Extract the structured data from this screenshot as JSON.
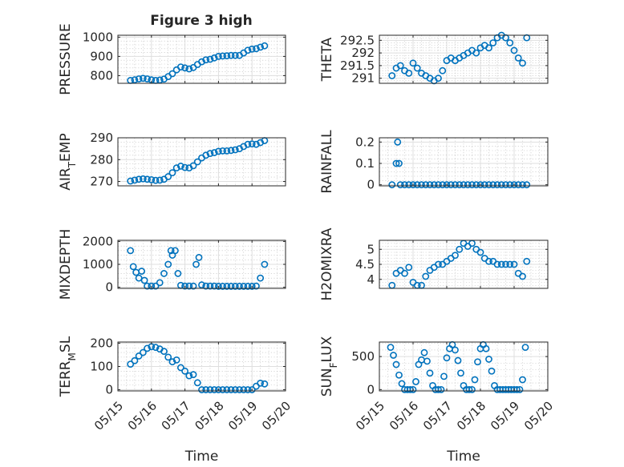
{
  "figure": {
    "title": "Figure 3 high"
  },
  "colors": {
    "marker": "#0072bd",
    "axes": "#262626",
    "grid": "#dfdfdf"
  },
  "chart_data": [
    {
      "type": "scatter",
      "id": "pressure",
      "title": "Figure 3 high",
      "xlabel": "",
      "ylabel": "PRESSURE",
      "xlim": [
        "05/15",
        "05/20"
      ],
      "ylim": [
        760,
        1010
      ],
      "yticks": [
        800,
        900,
        1000
      ],
      "yticklabels": [
        "800",
        "900",
        "1000"
      ],
      "grid": true,
      "x": [
        "05/15 09:00",
        "05/15 12:00",
        "05/15 15:00",
        "05/15 18:00",
        "05/15 21:00",
        "05/16 00:00",
        "05/16 03:00",
        "05/16 06:00",
        "05/16 09:00",
        "05/16 12:00",
        "05/16 15:00",
        "05/16 18:00",
        "05/16 21:00",
        "05/17 00:00",
        "05/17 03:00",
        "05/17 06:00",
        "05/17 09:00",
        "05/17 12:00",
        "05/17 15:00",
        "05/17 18:00",
        "05/17 21:00",
        "05/18 00:00",
        "05/18 03:00",
        "05/18 06:00",
        "05/18 09:00",
        "05/18 12:00",
        "05/18 15:00",
        "05/18 18:00",
        "05/18 21:00",
        "05/19 00:00",
        "05/19 03:00",
        "05/19 06:00",
        "05/19 09:00"
      ],
      "y": [
        775,
        778,
        783,
        786,
        783,
        778,
        775,
        777,
        782,
        795,
        810,
        830,
        845,
        840,
        835,
        842,
        858,
        872,
        882,
        885,
        892,
        900,
        902,
        903,
        905,
        905,
        905,
        918,
        932,
        938,
        940,
        948,
        955
      ]
    },
    {
      "type": "scatter",
      "id": "theta",
      "xlabel": "",
      "ylabel": "THETA",
      "xlim": [
        "05/15",
        "05/20"
      ],
      "ylim": [
        290.8,
        292.7
      ],
      "yticks": [
        291,
        291.5,
        292,
        292.5
      ],
      "yticklabels": [
        "291",
        "291.5",
        "292",
        "292.5"
      ],
      "grid": true,
      "x": [
        "05/15 09:00",
        "05/15 12:00",
        "05/15 15:00",
        "05/15 18:00",
        "05/15 21:00",
        "05/16 00:00",
        "05/16 03:00",
        "05/16 06:00",
        "05/16 09:00",
        "05/16 12:00",
        "05/16 15:00",
        "05/16 18:00",
        "05/16 21:00",
        "05/17 00:00",
        "05/17 03:00",
        "05/17 06:00",
        "05/17 09:00",
        "05/17 12:00",
        "05/17 15:00",
        "05/17 18:00",
        "05/17 21:00",
        "05/18 00:00",
        "05/18 03:00",
        "05/18 06:00",
        "05/18 09:00",
        "05/18 12:00",
        "05/18 15:00",
        "05/18 18:00",
        "05/18 21:00",
        "05/19 00:00",
        "05/19 03:00",
        "05/19 06:00",
        "05/19 09:00"
      ],
      "y": [
        291.1,
        291.4,
        291.5,
        291.3,
        291.2,
        291.6,
        291.4,
        291.2,
        291.1,
        291.0,
        290.9,
        291.0,
        291.3,
        291.7,
        291.8,
        291.7,
        291.8,
        291.9,
        292.0,
        292.1,
        292.0,
        292.2,
        292.3,
        292.2,
        292.4,
        292.6,
        292.7,
        292.6,
        292.4,
        292.1,
        291.8,
        291.6,
        292.6
      ]
    },
    {
      "type": "scatter",
      "id": "air-temp",
      "xlabel": "",
      "ylabel": "AIR_TEMP",
      "xlim": [
        "05/15",
        "05/20"
      ],
      "ylim": [
        268,
        290
      ],
      "yticks": [
        270,
        280,
        290
      ],
      "yticklabels": [
        "270",
        "280",
        "290"
      ],
      "grid": true,
      "x": [
        "05/15 09:00",
        "05/15 12:00",
        "05/15 15:00",
        "05/15 18:00",
        "05/15 21:00",
        "05/16 00:00",
        "05/16 03:00",
        "05/16 06:00",
        "05/16 09:00",
        "05/16 12:00",
        "05/16 15:00",
        "05/16 18:00",
        "05/16 21:00",
        "05/17 00:00",
        "05/17 03:00",
        "05/17 06:00",
        "05/17 09:00",
        "05/17 12:00",
        "05/17 15:00",
        "05/17 18:00",
        "05/17 21:00",
        "05/18 00:00",
        "05/18 03:00",
        "05/18 06:00",
        "05/18 09:00",
        "05/18 12:00",
        "05/18 15:00",
        "05/18 18:00",
        "05/18 21:00",
        "05/19 00:00",
        "05/19 03:00",
        "05/19 06:00",
        "05/19 09:00"
      ],
      "y": [
        270.2,
        270.6,
        271.0,
        271.2,
        271.0,
        270.8,
        270.5,
        270.6,
        271.0,
        272.2,
        274.0,
        276.2,
        277.0,
        276.4,
        276.2,
        277.2,
        279.0,
        280.8,
        282.0,
        282.8,
        283.2,
        283.8,
        284.0,
        284.0,
        284.2,
        284.5,
        285.0,
        286.0,
        287.0,
        287.2,
        287.0,
        287.8,
        288.7
      ]
    },
    {
      "type": "scatter",
      "id": "rainfall",
      "xlabel": "",
      "ylabel": "RAINFALL",
      "xlim": [
        "05/15",
        "05/20"
      ],
      "ylim": [
        -0.005,
        0.22
      ],
      "yticks": [
        0,
        0.1,
        0.2
      ],
      "yticklabels": [
        "0",
        "0.1",
        "0.2"
      ],
      "grid": true,
      "x": [
        "05/15 09:00",
        "05/15 12:00",
        "05/15 13:00",
        "05/15 14:00",
        "05/15 15:00",
        "05/15 18:00",
        "05/15 21:00",
        "05/16 00:00",
        "05/16 03:00",
        "05/16 06:00",
        "05/16 09:00",
        "05/16 12:00",
        "05/16 15:00",
        "05/16 18:00",
        "05/16 21:00",
        "05/17 00:00",
        "05/17 03:00",
        "05/17 06:00",
        "05/17 09:00",
        "05/17 12:00",
        "05/17 15:00",
        "05/17 18:00",
        "05/17 21:00",
        "05/18 00:00",
        "05/18 03:00",
        "05/18 06:00",
        "05/18 09:00",
        "05/18 12:00",
        "05/18 15:00",
        "05/18 18:00",
        "05/18 21:00",
        "05/19 00:00",
        "05/19 03:00",
        "05/19 06:00",
        "05/19 09:00"
      ],
      "y": [
        0,
        0.1,
        0.2,
        0.1,
        0,
        0,
        0,
        0,
        0,
        0,
        0,
        0,
        0,
        0,
        0,
        0,
        0,
        0,
        0,
        0,
        0,
        0,
        0,
        0,
        0,
        0,
        0,
        0,
        0,
        0,
        0,
        0,
        0,
        0,
        0
      ]
    },
    {
      "type": "scatter",
      "id": "mixdepth",
      "xlabel": "",
      "ylabel": "MIXDEPTH",
      "xlim": [
        "05/15",
        "05/20"
      ],
      "ylim": [
        -50,
        2050
      ],
      "yticks": [
        0,
        1000,
        2000
      ],
      "yticklabels": [
        "0",
        "1000",
        "2000"
      ],
      "grid": true,
      "x": [
        "05/15 09:00",
        "05/15 11:00",
        "05/15 13:00",
        "05/15 15:00",
        "05/15 17:00",
        "05/15 19:00",
        "05/15 21:00",
        "05/16 00:00",
        "05/16 03:00",
        "05/16 06:00",
        "05/16 09:00",
        "05/16 12:00",
        "05/16 14:00",
        "05/16 15:00",
        "05/16 17:00",
        "05/16 19:00",
        "05/16 21:00",
        "05/17 00:00",
        "05/17 03:00",
        "05/17 06:00",
        "05/17 08:00",
        "05/17 10:00",
        "05/17 12:00",
        "05/17 15:00",
        "05/17 18:00",
        "05/17 21:00",
        "05/18 00:00",
        "05/18 03:00",
        "05/18 06:00",
        "05/18 09:00",
        "05/18 12:00",
        "05/18 15:00",
        "05/18 18:00",
        "05/18 21:00",
        "05/19 00:00",
        "05/19 03:00",
        "05/19 06:00",
        "05/19 09:00"
      ],
      "y": [
        1600,
        900,
        650,
        400,
        700,
        300,
        50,
        50,
        50,
        200,
        600,
        1000,
        1600,
        1400,
        1600,
        600,
        80,
        50,
        50,
        50,
        1000,
        1300,
        100,
        50,
        50,
        50,
        40,
        40,
        40,
        40,
        40,
        40,
        40,
        40,
        40,
        50,
        400,
        1000
      ]
    },
    {
      "type": "scatter",
      "id": "h2omixra",
      "xlabel": "",
      "ylabel": "H2OMIXRA",
      "xlim": [
        "05/15",
        "05/20"
      ],
      "ylim": [
        3.7,
        5.3
      ],
      "yticks": [
        4,
        4.5,
        5
      ],
      "yticklabels": [
        "4",
        "4.5",
        "5"
      ],
      "grid": true,
      "x": [
        "05/15 09:00",
        "05/15 12:00",
        "05/15 15:00",
        "05/15 18:00",
        "05/15 21:00",
        "05/16 00:00",
        "05/16 03:00",
        "05/16 06:00",
        "05/16 09:00",
        "05/16 12:00",
        "05/16 15:00",
        "05/16 18:00",
        "05/16 21:00",
        "05/17 00:00",
        "05/17 03:00",
        "05/17 06:00",
        "05/17 09:00",
        "05/17 12:00",
        "05/17 15:00",
        "05/17 18:00",
        "05/17 21:00",
        "05/18 00:00",
        "05/18 03:00",
        "05/18 06:00",
        "05/18 09:00",
        "05/18 12:00",
        "05/18 15:00",
        "05/18 18:00",
        "05/18 21:00",
        "05/19 00:00",
        "05/19 03:00",
        "05/19 06:00",
        "05/19 09:00"
      ],
      "y": [
        3.8,
        4.2,
        4.3,
        4.2,
        4.4,
        3.9,
        3.8,
        3.8,
        4.1,
        4.3,
        4.4,
        4.5,
        4.5,
        4.6,
        4.7,
        4.8,
        5.0,
        5.2,
        5.1,
        5.2,
        5.0,
        4.9,
        4.7,
        4.6,
        4.6,
        4.5,
        4.5,
        4.5,
        4.5,
        4.5,
        4.2,
        4.1,
        4.6
      ]
    },
    {
      "type": "scatter",
      "id": "terr-msl",
      "xlabel": "Time",
      "ylabel": "TERR_MSL",
      "xlim": [
        "05/15",
        "05/20"
      ],
      "ylim": [
        -5,
        205
      ],
      "yticks": [
        0,
        100,
        200
      ],
      "yticklabels": [
        "0",
        "100",
        "200"
      ],
      "xticks": [
        "05/15",
        "05/16",
        "05/17",
        "05/18",
        "05/19",
        "05/20"
      ],
      "grid": true,
      "x": [
        "05/15 09:00",
        "05/15 12:00",
        "05/15 15:00",
        "05/15 18:00",
        "05/15 21:00",
        "05/16 00:00",
        "05/16 03:00",
        "05/16 06:00",
        "05/16 09:00",
        "05/16 12:00",
        "05/16 15:00",
        "05/16 18:00",
        "05/16 21:00",
        "05/17 00:00",
        "05/17 03:00",
        "05/17 06:00",
        "05/17 09:00",
        "05/17 12:00",
        "05/17 15:00",
        "05/17 18:00",
        "05/17 21:00",
        "05/18 00:00",
        "05/18 03:00",
        "05/18 06:00",
        "05/18 09:00",
        "05/18 12:00",
        "05/18 15:00",
        "05/18 18:00",
        "05/18 21:00",
        "05/19 00:00",
        "05/19 03:00",
        "05/19 06:00",
        "05/19 09:00"
      ],
      "y": [
        110,
        125,
        145,
        160,
        178,
        185,
        182,
        175,
        165,
        140,
        120,
        128,
        95,
        80,
        60,
        65,
        30,
        0,
        0,
        0,
        0,
        0,
        0,
        0,
        0,
        0,
        0,
        0,
        0,
        0,
        15,
        28,
        25
      ]
    },
    {
      "type": "scatter",
      "id": "sun-flux",
      "xlabel": "Time",
      "ylabel": "SUN_FLUX",
      "xlim": [
        "05/15",
        "05/20"
      ],
      "ylim": [
        -20,
        720
      ],
      "yticks": [
        0,
        500
      ],
      "yticklabels": [
        "0",
        "500"
      ],
      "xticks": [
        "05/15",
        "05/16",
        "05/17",
        "05/18",
        "05/19",
        "05/20"
      ],
      "grid": true,
      "x": [
        "05/15 08:00",
        "05/15 10:00",
        "05/15 12:00",
        "05/15 14:00",
        "05/15 16:00",
        "05/15 18:00",
        "05/15 20:00",
        "05/15 22:00",
        "05/16 00:00",
        "05/16 02:00",
        "05/16 04:00",
        "05/16 06:00",
        "05/16 08:00",
        "05/16 10:00",
        "05/16 12:00",
        "05/16 14:00",
        "05/16 16:00",
        "05/16 18:00",
        "05/16 20:00",
        "05/16 22:00",
        "05/17 00:00",
        "05/17 02:00",
        "05/17 04:00",
        "05/17 06:00",
        "05/17 08:00",
        "05/17 10:00",
        "05/17 12:00",
        "05/17 14:00",
        "05/17 16:00",
        "05/17 18:00",
        "05/17 20:00",
        "05/17 22:00",
        "05/18 00:00",
        "05/18 02:00",
        "05/18 04:00",
        "05/18 06:00",
        "05/18 08:00",
        "05/18 10:00",
        "05/18 12:00",
        "05/18 14:00",
        "05/18 16:00",
        "05/18 18:00",
        "05/18 20:00",
        "05/18 22:00",
        "05/19 00:00",
        "05/19 02:00",
        "05/19 04:00",
        "05/19 06:00",
        "05/19 08:00"
      ],
      "y": [
        640,
        520,
        380,
        220,
        90,
        0,
        0,
        0,
        0,
        120,
        380,
        450,
        560,
        430,
        250,
        60,
        0,
        0,
        0,
        200,
        480,
        620,
        680,
        600,
        440,
        250,
        60,
        0,
        0,
        0,
        150,
        420,
        620,
        680,
        620,
        460,
        280,
        60,
        0,
        0,
        0,
        0,
        0,
        0,
        0,
        0,
        0,
        150,
        640
      ]
    }
  ]
}
